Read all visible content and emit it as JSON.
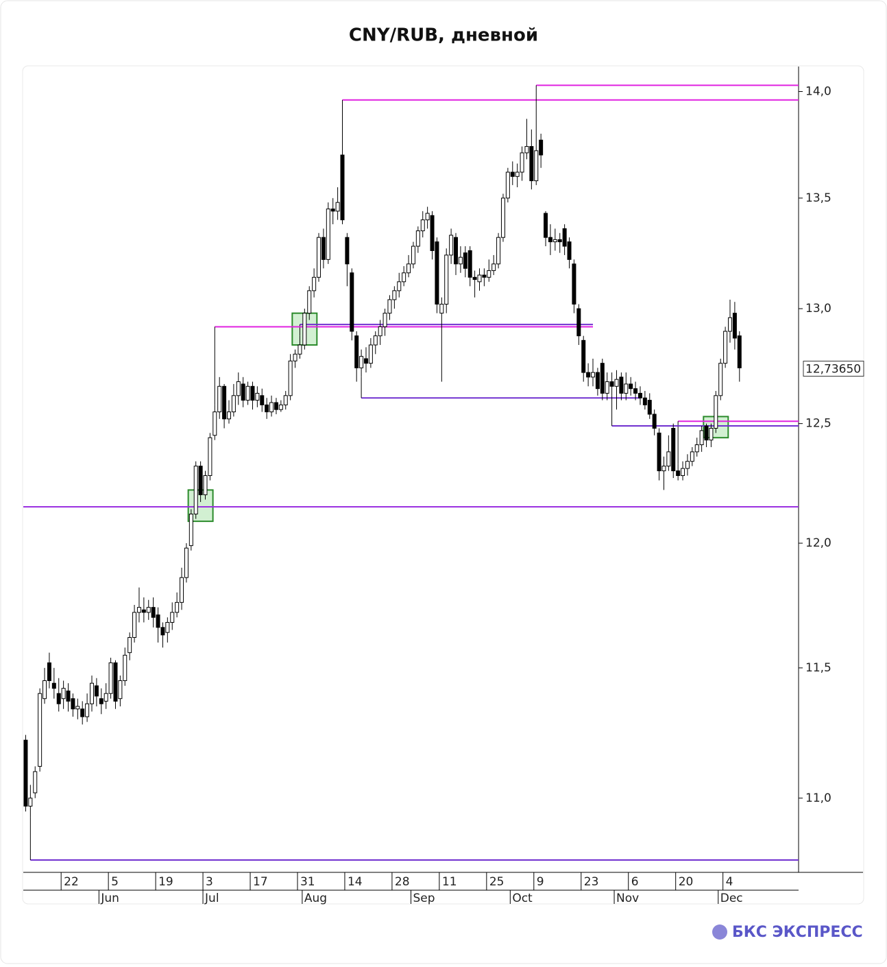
{
  "chart_data": {
    "type": "candlestick",
    "title": "CNY/RUB, дневной",
    "yscale": "log",
    "ylim": [
      10.75,
      14.12
    ],
    "yticks": [
      {
        "value": 11,
        "label": "11,0"
      },
      {
        "value": 11.5,
        "label": "11,5"
      },
      {
        "value": 12,
        "label": "12,0"
      },
      {
        "value": 12.5,
        "label": "12,5"
      },
      {
        "value": 13,
        "label": "13,0"
      },
      {
        "value": 13.5,
        "label": "13,5"
      },
      {
        "value": 14,
        "label": "14,0"
      }
    ],
    "last_price": {
      "value": 12.7365,
      "label": "12,73650"
    },
    "up_color": "#ffffff",
    "down_color": "#000000",
    "categories": [
      null,
      null,
      null,
      null,
      null,
      null,
      null,
      null,
      "22",
      null,
      null,
      null,
      null,
      null,
      null,
      null,
      null,
      null,
      "5",
      null,
      null,
      null,
      null,
      null,
      null,
      null,
      null,
      null,
      "19",
      null,
      null,
      null,
      null,
      null,
      null,
      null,
      null,
      null,
      "3",
      null,
      null,
      null,
      null,
      null,
      null,
      null,
      null,
      null,
      "17",
      null,
      null,
      null,
      null,
      null,
      null,
      null,
      null,
      null,
      "31",
      null,
      null,
      null,
      null,
      null,
      null,
      null,
      null,
      null,
      "14",
      null,
      null,
      null,
      null,
      null,
      null,
      null,
      null,
      null,
      "28",
      null,
      null,
      null,
      null,
      null,
      null,
      null,
      null,
      null,
      "11",
      null,
      null,
      null,
      null,
      null,
      null,
      null,
      null,
      null,
      "25",
      null,
      null,
      null,
      null,
      null,
      null,
      null,
      null,
      null,
      "9",
      null,
      null,
      null,
      null,
      null,
      null,
      null,
      null,
      null,
      "23",
      null,
      null,
      null,
      null,
      null,
      null,
      null,
      null,
      null,
      "6",
      null,
      null,
      null,
      null,
      null,
      null,
      null,
      null,
      null,
      "20",
      null,
      null,
      null,
      null,
      null,
      null,
      null,
      null,
      null,
      "4",
      null,
      null,
      null
    ],
    "month_categories": [
      null,
      null,
      null,
      null,
      null,
      null,
      null,
      null,
      null,
      null,
      null,
      null,
      null,
      null,
      null,
      null,
      "Jun",
      null,
      null,
      null,
      null,
      null,
      null,
      null,
      null,
      null,
      null,
      null,
      null,
      null,
      null,
      null,
      null,
      null,
      null,
      null,
      null,
      null,
      "Jul",
      null,
      null,
      null,
      null,
      null,
      null,
      null,
      null,
      null,
      null,
      null,
      null,
      null,
      null,
      null,
      null,
      null,
      null,
      null,
      null,
      "Aug",
      null,
      null,
      null,
      null,
      null,
      null,
      null,
      null,
      null,
      null,
      null,
      null,
      null,
      null,
      null,
      null,
      null,
      null,
      null,
      null,
      null,
      null,
      "Sep",
      null,
      null,
      null,
      null,
      null,
      null,
      null,
      null,
      null,
      null,
      null,
      null,
      null,
      null,
      null,
      null,
      null,
      null,
      null,
      null,
      "Oct",
      null,
      null,
      null,
      null,
      null,
      null,
      null,
      null,
      null,
      null,
      null,
      null,
      null,
      null,
      null,
      null,
      null,
      null,
      null,
      null,
      null,
      "Nov",
      null,
      null,
      null,
      null,
      null,
      null,
      null,
      null,
      null,
      null,
      null,
      null,
      null,
      null,
      null,
      null,
      null,
      null,
      null,
      null,
      null,
      "Dec",
      null,
      null,
      null,
      null
    ],
    "open": [
      11.22,
      10.97,
      11.02,
      11.12,
      11.38,
      11.52,
      11.44,
      11.4,
      11.38,
      11.41,
      11.38,
      11.34,
      11.34,
      11.31,
      11.36,
      11.43,
      11.38,
      11.37,
      11.4,
      11.52,
      11.38,
      11.45,
      11.56,
      11.62,
      11.72,
      11.73,
      11.72,
      11.74,
      11.71,
      11.66,
      11.64,
      11.68,
      11.72,
      11.76,
      11.86,
      11.99,
      12.12,
      12.32,
      12.2,
      12.28,
      12.45,
      12.55,
      12.66,
      12.52,
      12.55,
      12.62,
      12.67,
      12.6,
      12.66,
      12.6,
      12.62,
      12.58,
      12.55,
      12.59,
      12.56,
      12.58,
      12.62,
      12.77,
      12.8,
      12.84,
      12.98,
      13.08,
      13.14,
      13.32,
      13.22,
      13.45,
      13.44,
      13.7,
      13.32,
      13.16,
      12.88,
      12.74,
      12.78,
      12.76,
      12.84,
      12.88,
      12.92,
      12.98,
      13.04,
      13.08,
      13.12,
      13.16,
      13.2,
      13.28,
      13.35,
      13.4,
      13.42,
      13.3,
      12.98,
      13.02,
      13.24,
      13.32,
      13.2,
      13.25,
      13.26,
      13.14,
      13.12,
      13.15,
      13.14,
      13.17,
      13.2,
      13.32,
      13.5,
      13.62,
      13.6,
      13.62,
      13.71,
      13.74,
      13.58,
      13.77,
      13.43,
      13.32,
      13.3,
      13.31,
      13.36,
      13.3,
      13.2,
      13.0,
      12.86,
      12.72,
      12.7,
      12.72,
      12.76,
      12.63,
      12.68,
      12.66,
      12.7,
      12.63,
      12.67,
      12.65,
      12.63,
      12.61,
      12.6,
      12.54,
      12.46,
      12.3,
      12.32,
      12.48,
      12.3,
      12.28,
      12.31,
      12.34,
      12.38,
      12.41,
      12.49,
      12.43,
      12.48,
      12.62,
      12.76,
      12.9,
      12.98,
      12.88
    ],
    "high": [
      11.24,
      11.05,
      11.12,
      11.42,
      11.5,
      11.56,
      11.5,
      11.46,
      11.45,
      11.44,
      11.4,
      11.38,
      11.37,
      11.4,
      11.47,
      11.46,
      11.42,
      11.44,
      11.54,
      11.53,
      11.47,
      11.58,
      11.64,
      11.75,
      11.82,
      11.78,
      11.77,
      11.78,
      11.74,
      11.68,
      11.7,
      11.76,
      11.8,
      11.9,
      12.0,
      12.14,
      12.34,
      12.34,
      12.3,
      12.46,
      12.58,
      12.7,
      12.67,
      12.6,
      12.67,
      12.72,
      12.7,
      12.68,
      12.68,
      12.66,
      12.65,
      12.61,
      12.62,
      12.61,
      12.6,
      12.64,
      12.8,
      12.82,
      12.88,
      13.0,
      13.1,
      13.18,
      13.34,
      13.36,
      13.48,
      13.5,
      13.55,
      13.96,
      13.34,
      13.18,
      12.9,
      12.82,
      12.83,
      12.87,
      12.9,
      12.95,
      13.0,
      13.06,
      13.1,
      13.16,
      13.19,
      13.24,
      13.3,
      13.37,
      13.44,
      13.46,
      13.44,
      13.32,
      13.05,
      13.27,
      13.36,
      13.34,
      13.28,
      13.28,
      13.28,
      13.17,
      13.18,
      13.18,
      13.22,
      13.24,
      13.34,
      13.52,
      13.64,
      13.67,
      13.66,
      13.74,
      13.87,
      13.82,
      14.03,
      13.8,
      13.44,
      13.38,
      13.36,
      13.34,
      13.38,
      13.32,
      13.22,
      13.02,
      12.88,
      12.76,
      12.78,
      12.74,
      12.78,
      12.72,
      12.72,
      12.73,
      12.72,
      12.72,
      12.7,
      12.68,
      12.66,
      12.64,
      12.63,
      12.56,
      12.48,
      12.36,
      12.45,
      12.5,
      12.33,
      12.34,
      12.37,
      12.4,
      12.44,
      12.49,
      12.5,
      12.5,
      12.64,
      12.78,
      12.92,
      13.04,
      13.03,
      12.9
    ],
    "low": [
      10.95,
      10.93,
      11.0,
      11.1,
      11.36,
      11.42,
      11.38,
      11.33,
      11.34,
      11.33,
      11.31,
      11.3,
      11.28,
      11.29,
      11.33,
      11.35,
      11.32,
      11.34,
      11.38,
      11.34,
      11.35,
      11.43,
      11.53,
      11.6,
      11.68,
      11.68,
      11.69,
      11.66,
      11.6,
      11.58,
      11.6,
      11.65,
      11.7,
      11.73,
      11.84,
      11.97,
      12.1,
      12.17,
      12.18,
      12.26,
      12.43,
      12.52,
      12.48,
      12.5,
      12.53,
      12.58,
      12.57,
      12.58,
      12.56,
      12.57,
      12.55,
      12.52,
      12.53,
      12.54,
      12.55,
      12.56,
      12.6,
      12.74,
      12.78,
      12.82,
      12.95,
      13.05,
      13.12,
      13.18,
      13.2,
      13.38,
      13.4,
      13.38,
      13.1,
      12.86,
      12.68,
      12.7,
      12.72,
      12.74,
      12.8,
      12.84,
      12.88,
      12.95,
      13.0,
      13.05,
      13.1,
      13.14,
      13.18,
      13.25,
      13.32,
      13.36,
      13.22,
      12.98,
      12.68,
      12.98,
      13.2,
      13.15,
      13.16,
      13.14,
      13.1,
      13.05,
      13.08,
      13.1,
      13.12,
      13.15,
      13.18,
      13.3,
      13.48,
      13.56,
      13.55,
      13.58,
      13.68,
      13.54,
      13.56,
      13.64,
      13.28,
      13.24,
      13.26,
      13.25,
      13.24,
      13.18,
      12.98,
      12.84,
      12.68,
      12.66,
      12.66,
      12.62,
      12.6,
      12.6,
      12.62,
      12.56,
      12.6,
      12.6,
      12.62,
      12.6,
      12.58,
      12.56,
      12.52,
      12.45,
      12.26,
      12.22,
      12.3,
      12.27,
      12.26,
      12.26,
      12.28,
      12.32,
      12.36,
      12.38,
      12.4,
      12.4,
      12.46,
      12.6,
      12.74,
      12.85,
      12.82,
      12.68
    ],
    "close": [
      10.97,
      11.0,
      11.1,
      11.4,
      11.45,
      11.45,
      11.42,
      11.36,
      11.42,
      11.37,
      11.34,
      11.35,
      11.31,
      11.36,
      11.44,
      11.39,
      11.36,
      11.4,
      11.52,
      11.37,
      11.45,
      11.55,
      11.62,
      11.72,
      11.74,
      11.72,
      11.74,
      11.7,
      11.66,
      11.63,
      11.68,
      11.72,
      11.76,
      11.86,
      11.98,
      12.12,
      12.32,
      12.2,
      12.28,
      12.44,
      12.55,
      12.66,
      12.52,
      12.55,
      12.62,
      12.68,
      12.6,
      12.66,
      12.6,
      12.63,
      12.58,
      12.55,
      12.59,
      12.56,
      12.58,
      12.62,
      12.77,
      12.8,
      12.84,
      12.98,
      13.08,
      13.14,
      13.32,
      13.22,
      13.45,
      13.44,
      13.48,
      13.4,
      13.2,
      12.9,
      12.74,
      12.79,
      12.76,
      12.84,
      12.88,
      12.92,
      12.98,
      13.04,
      13.08,
      13.12,
      13.16,
      13.2,
      13.28,
      13.35,
      13.4,
      13.43,
      13.26,
      13.02,
      13.02,
      13.24,
      13.33,
      13.2,
      13.23,
      13.18,
      13.14,
      13.13,
      13.15,
      13.14,
      13.17,
      13.2,
      13.32,
      13.5,
      13.62,
      13.6,
      13.62,
      13.71,
      13.74,
      13.58,
      13.72,
      13.7,
      13.32,
      13.3,
      13.31,
      13.3,
      13.28,
      13.22,
      13.02,
      12.88,
      12.72,
      12.7,
      12.72,
      12.65,
      12.63,
      12.68,
      12.66,
      12.69,
      12.63,
      12.67,
      12.65,
      12.63,
      12.61,
      12.58,
      12.54,
      12.48,
      12.3,
      12.32,
      12.38,
      12.3,
      12.28,
      12.31,
      12.34,
      12.38,
      12.41,
      12.47,
      12.43,
      12.48,
      12.62,
      12.76,
      12.9,
      12.96,
      12.87,
      12.74
    ],
    "levels": [
      {
        "value": 14.03,
        "start": 108,
        "color": "#e020e0"
      },
      {
        "value": 13.96,
        "start": 67,
        "color": "#e020e0"
      },
      {
        "value": 12.93,
        "start": 58,
        "end": 120,
        "color": "#7030d0"
      },
      {
        "value": 12.92,
        "start": 40,
        "end": 120,
        "color": "#e020e0"
      },
      {
        "value": 12.61,
        "start": 71,
        "end": 130,
        "color": "#7030d0"
      },
      {
        "value": 12.51,
        "start": 138,
        "color": "#e020e0"
      },
      {
        "value": 12.49,
        "start": 124,
        "color": "#7030d0"
      },
      {
        "value": 12.15,
        "start": 0,
        "color": "#9a30e0"
      },
      {
        "value": 10.77,
        "start": 1,
        "color": "#7030d0"
      }
    ],
    "highlights": [
      {
        "index": 37,
        "low": 12.09,
        "high": 12.22,
        "color": "#2a8a2a"
      },
      {
        "index": 59,
        "low": 12.84,
        "high": 12.98,
        "color": "#2a8a2a"
      },
      {
        "index": 146,
        "low": 12.44,
        "high": 12.53,
        "color": "#2a8a2a"
      }
    ]
  },
  "brand": "БКС ЭКСПРЕСС"
}
